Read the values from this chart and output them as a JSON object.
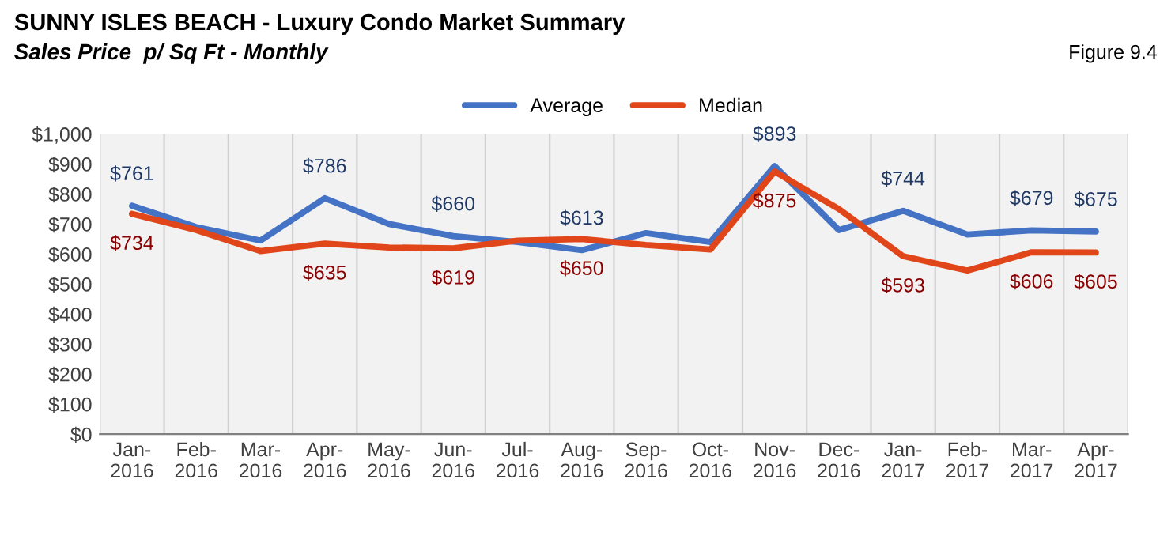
{
  "chart_data": {
    "type": "line",
    "title": "SUNNY ISLES BEACH - Luxury Condo Market Summary",
    "subtitle": "Sales Price  p/ Sq Ft - Monthly",
    "annotations": [
      "Figure 9.4"
    ],
    "categories": [
      "Jan-\n2016",
      "Feb-\n2016",
      "Mar-\n2016",
      "Apr-\n2016",
      "May-\n2016",
      "Jun-\n2016",
      "Jul-\n2016",
      "Aug-\n2016",
      "Sep-\n2016",
      "Oct-\n2016",
      "Nov-\n2016",
      "Dec-\n2016",
      "Jan-\n2017",
      "Feb-\n2017",
      "Mar-\n2017",
      "Apr-\n2017"
    ],
    "series": [
      {
        "name": "Average",
        "color": "#4472c4",
        "values": [
          761,
          690,
          645,
          786,
          700,
          660,
          640,
          613,
          670,
          640,
          893,
          680,
          744,
          665,
          679,
          675
        ],
        "value_labels": [
          "$761",
          null,
          null,
          "$786",
          null,
          "$660",
          null,
          "$613",
          null,
          null,
          "$893",
          null,
          "$744",
          null,
          "$679",
          "$675"
        ]
      },
      {
        "name": "Median",
        "color": "#e0461a",
        "values": [
          734,
          680,
          610,
          635,
          622,
          619,
          645,
          650,
          630,
          615,
          875,
          750,
          593,
          545,
          606,
          605
        ],
        "value_labels": [
          "$734",
          null,
          null,
          "$635",
          null,
          "$619",
          null,
          "$650",
          null,
          null,
          "$875",
          null,
          "$593",
          null,
          "$606",
          "$605"
        ]
      }
    ],
    "ylim": [
      0,
      1000
    ],
    "yticks": [
      {
        "value": 0,
        "label": "$0"
      },
      {
        "value": 100,
        "label": "$100"
      },
      {
        "value": 200,
        "label": "$200"
      },
      {
        "value": 300,
        "label": "$300"
      },
      {
        "value": 400,
        "label": "$400"
      },
      {
        "value": 500,
        "label": "$500"
      },
      {
        "value": 600,
        "label": "$600"
      },
      {
        "value": 700,
        "label": "$700"
      },
      {
        "value": 800,
        "label": "$800"
      },
      {
        "value": 900,
        "label": "$900"
      },
      {
        "value": 1000,
        "label": "$1,000"
      }
    ],
    "grid": "x",
    "legend": "top",
    "marker": "none",
    "line_style": "solid"
  }
}
